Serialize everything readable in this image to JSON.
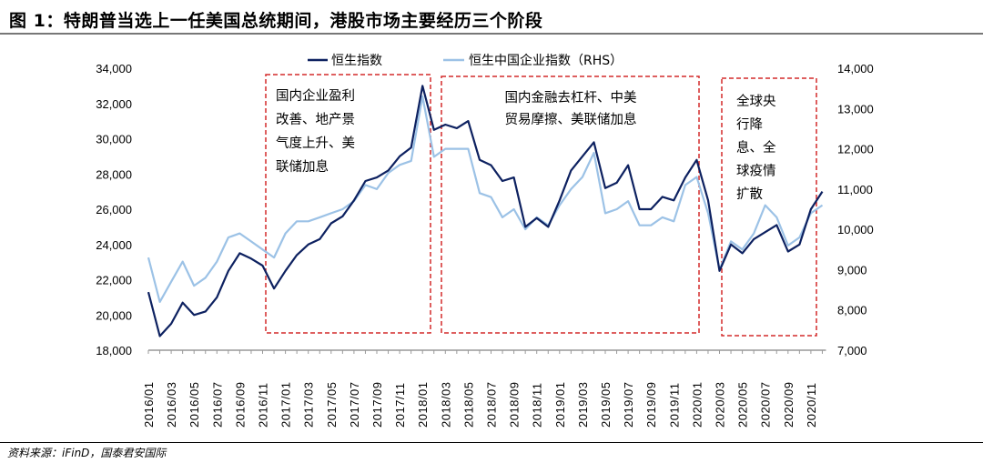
{
  "title": "图 1：特朗普当选上一任美国总统期间，港股市场主要经历三个阶段",
  "source": "资料来源：iFinD，国泰君安国际",
  "colors": {
    "hsi": "#0d2160",
    "hscei": "#9cc2e6",
    "box": "#d42a2a"
  },
  "chart_data": {
    "type": "line",
    "title": "",
    "x": [
      "2016/01",
      "2016/02",
      "2016/03",
      "2016/04",
      "2016/05",
      "2016/06",
      "2016/07",
      "2016/08",
      "2016/09",
      "2016/10",
      "2016/11",
      "2016/12",
      "2017/01",
      "2017/02",
      "2017/03",
      "2017/04",
      "2017/05",
      "2017/06",
      "2017/07",
      "2017/08",
      "2017/09",
      "2017/10",
      "2017/11",
      "2017/12",
      "2018/01",
      "2018/02",
      "2018/03",
      "2018/04",
      "2018/05",
      "2018/06",
      "2018/07",
      "2018/08",
      "2018/09",
      "2018/10",
      "2018/11",
      "2018/12",
      "2019/01",
      "2019/02",
      "2019/03",
      "2019/04",
      "2019/05",
      "2019/06",
      "2019/07",
      "2019/08",
      "2019/09",
      "2019/10",
      "2019/11",
      "2019/12",
      "2020/01",
      "2020/02",
      "2020/03",
      "2020/04",
      "2020/05",
      "2020/06",
      "2020/07",
      "2020/08",
      "2020/09",
      "2020/10",
      "2020/11",
      "2020/12"
    ],
    "x_tick_labels": [
      "2016/01",
      "2016/03",
      "2016/05",
      "2016/07",
      "2016/09",
      "2016/11",
      "2017/01",
      "2017/03",
      "2017/05",
      "2017/07",
      "2017/09",
      "2017/11",
      "2018/01",
      "2018/03",
      "2018/05",
      "2018/07",
      "2018/09",
      "2018/11",
      "2019/01",
      "2019/03",
      "2019/05",
      "2019/07",
      "2019/09",
      "2019/11",
      "2020/01",
      "2020/03",
      "2020/05",
      "2020/07",
      "2020/09",
      "2020/11"
    ],
    "series": [
      {
        "name": "恒生指数",
        "axis": "left",
        "values": [
          21300,
          18800,
          19500,
          20700,
          20000,
          20200,
          21000,
          22500,
          23500,
          23200,
          22800,
          21500,
          22500,
          23400,
          24000,
          24300,
          25200,
          25600,
          26500,
          27600,
          27800,
          28200,
          29000,
          29500,
          33000,
          30500,
          30800,
          30600,
          31000,
          28800,
          28500,
          27600,
          27800,
          25000,
          25500,
          25000,
          26500,
          28200,
          29000,
          29800,
          27200,
          27500,
          28500,
          26000,
          26000,
          26700,
          26500,
          27800,
          28800,
          26500,
          22500,
          24000,
          23500,
          24300,
          24700,
          25100,
          23600,
          24000,
          26000,
          27000
        ]
      },
      {
        "name": "恒生中国企业指数（RHS）",
        "axis": "right",
        "values": [
          9300,
          8200,
          8700,
          9200,
          8600,
          8800,
          9200,
          9800,
          9900,
          9700,
          9500,
          9300,
          9900,
          10200,
          10200,
          10300,
          10400,
          10500,
          10700,
          11100,
          11000,
          11400,
          11600,
          11700,
          13300,
          11800,
          12000,
          12000,
          12000,
          10900,
          10800,
          10300,
          10500,
          10000,
          10300,
          10100,
          10600,
          11000,
          11300,
          11900,
          10400,
          10500,
          10700,
          10100,
          10100,
          10300,
          10200,
          11100,
          11300,
          10400,
          9000,
          9700,
          9500,
          9900,
          10600,
          10300,
          9600,
          9800,
          10400,
          10600
        ]
      }
    ],
    "y_left": {
      "range": [
        18000,
        34000
      ],
      "ticks": [
        "18,000",
        "20,000",
        "22,000",
        "24,000",
        "26,000",
        "28,000",
        "30,000",
        "32,000",
        "34,000"
      ]
    },
    "y_right": {
      "range": [
        7000,
        14000
      ],
      "ticks": [
        "7,000",
        "8,000",
        "9,000",
        "10,000",
        "11,000",
        "12,000",
        "13,000",
        "14,000"
      ]
    },
    "legend_position": "top-center",
    "grid": false,
    "annotations": [
      {
        "period": [
          "2016/11",
          "2018/02"
        ],
        "lines": [
          "国内企业盈利",
          "改善、地产景",
          "气度上升、美",
          "联储加息"
        ]
      },
      {
        "period": [
          "2018/03",
          "2020/01"
        ],
        "lines": [
          "国内金融去杠杆、中美",
          "贸易摩擦、美联储加息"
        ]
      },
      {
        "period": [
          "2020/03",
          "2020/12"
        ],
        "lines": [
          "全球央",
          "行降",
          "息、全",
          "球疫情",
          "扩散"
        ]
      }
    ]
  }
}
